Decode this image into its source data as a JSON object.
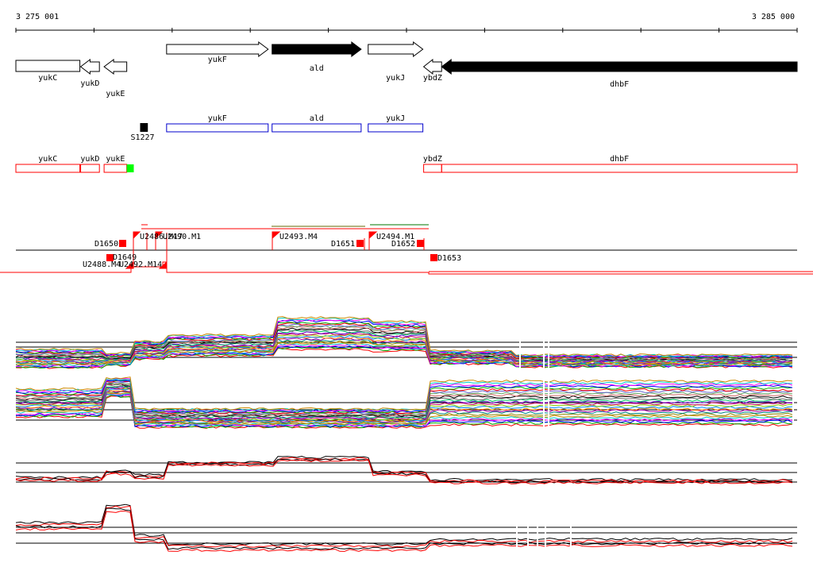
{
  "coords": {
    "start_label": "3 275 001",
    "end_label": "3 285 000",
    "start": 3275001,
    "end": 3285000
  },
  "colors": {
    "gene_fill_dark": "#000000",
    "gene_fill_light": "#ffffff",
    "blue": "#0000cc",
    "red": "#ff0000",
    "green": "#00ff00",
    "track_black": "#000000"
  },
  "genes_track1": [
    {
      "name": "yukC",
      "dir": "box",
      "fill": "white",
      "start": 3275001,
      "end": 3275820
    },
    {
      "name": "yukD",
      "dir": "left",
      "fill": "white",
      "start": 3275830,
      "end": 3276070
    },
    {
      "name": "yukE",
      "dir": "left",
      "fill": "white",
      "start": 3276130,
      "end": 3276420
    },
    {
      "name": "yukF",
      "dir": "right",
      "fill": "white",
      "start": 3276930,
      "end": 3278230
    },
    {
      "name": "ald",
      "dir": "right",
      "fill": "black",
      "start": 3278280,
      "end": 3279420
    },
    {
      "name": "yukJ",
      "dir": "right",
      "fill": "white",
      "start": 3279510,
      "end": 3280210
    },
    {
      "name": "ybdZ",
      "dir": "left",
      "fill": "white",
      "start": 3280220,
      "end": 3280450
    },
    {
      "name": "dhbF",
      "dir": "left",
      "fill": "black",
      "start": 3280450,
      "end": 3285000
    }
  ],
  "track2": {
    "marker": {
      "name": "S1227",
      "start": 3276591,
      "end": 3276690
    },
    "boxes": [
      {
        "name": "yukF",
        "start": 3276930,
        "end": 3278230
      },
      {
        "name": "ald",
        "start": 3278280,
        "end": 3279420
      },
      {
        "name": "yukJ",
        "start": 3279510,
        "end": 3280210
      }
    ]
  },
  "track3": [
    {
      "name": "yukC",
      "start": 3275001,
      "end": 3275820
    },
    {
      "name": "yukD",
      "start": 3275830,
      "end": 3276070
    },
    {
      "name": "yukE",
      "start": 3276130,
      "end": 3276420
    },
    {
      "name": "ybdZ",
      "start": 3280220,
      "end": 3280450
    },
    {
      "name": "dhbF",
      "start": 3280450,
      "end": 3285000
    }
  ],
  "track3_green": {
    "start": 3276420,
    "end": 3276510
  },
  "tss_labels": [
    {
      "text": "D1650",
      "side": "above"
    },
    {
      "text": "D1649",
      "side": "below"
    },
    {
      "text": "U2488.M4",
      "side": "below"
    },
    {
      "text": "U2492.M14",
      "side": "below"
    },
    {
      "text": "U2486.M17",
      "side": "above"
    },
    {
      "text": "U2490.M1",
      "side": "above"
    },
    {
      "text": "U2493.M4",
      "side": "above"
    },
    {
      "text": "D1651",
      "side": "above"
    },
    {
      "text": "U2494.M1",
      "side": "above"
    },
    {
      "text": "D1652",
      "side": "above"
    },
    {
      "text": "D1653",
      "side": "below"
    }
  ]
}
